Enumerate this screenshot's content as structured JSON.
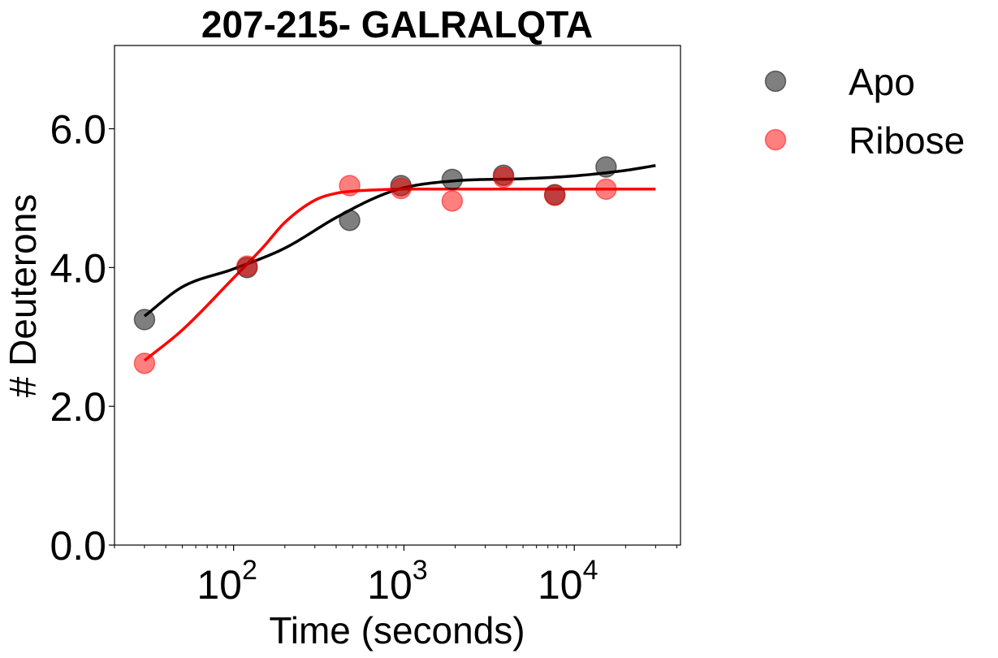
{
  "chart_data": {
    "type": "scatter",
    "title": "207-215- GALRALQTA",
    "xlabel": "Time (seconds)",
    "ylabel": "# Deuterons",
    "x_scale": "log",
    "xlim": [
      20,
      42000
    ],
    "ylim": [
      0,
      7.2
    ],
    "x_ticks": [
      {
        "value": 100,
        "base": "10",
        "exp": "2"
      },
      {
        "value": 1000,
        "base": "10",
        "exp": "3"
      },
      {
        "value": 10000,
        "base": "10",
        "exp": "4"
      }
    ],
    "y_ticks": [
      {
        "value": 0,
        "label": "0.0"
      },
      {
        "value": 2,
        "label": "2.0"
      },
      {
        "value": 4,
        "label": "4.0"
      },
      {
        "value": 6,
        "label": "6.0"
      }
    ],
    "legend_position": "outside-right-top",
    "grid": false,
    "series": [
      {
        "name": "Apo",
        "color": "#000000",
        "marker_alpha": 0.5,
        "x": [
          30,
          120,
          480,
          960,
          1920,
          3840,
          7680,
          15360
        ],
        "y": [
          3.25,
          4.0,
          4.68,
          5.18,
          5.27,
          5.33,
          5.05,
          5.45
        ],
        "fit": {
          "x": [
            30,
            50,
            100,
            200,
            400,
            700,
            1000,
            2000,
            5000,
            10000,
            20000,
            30000
          ],
          "y": [
            3.3,
            3.72,
            3.98,
            4.28,
            4.72,
            5.02,
            5.15,
            5.25,
            5.28,
            5.32,
            5.4,
            5.47
          ]
        }
      },
      {
        "name": "Ribose",
        "color": "#ff0000",
        "marker_alpha": 0.5,
        "x": [
          30,
          120,
          480,
          960,
          1920,
          3840,
          7680,
          15360
        ],
        "y": [
          2.62,
          4.02,
          5.18,
          5.14,
          4.96,
          5.3,
          5.04,
          5.13
        ],
        "fit": {
          "x": [
            30,
            50,
            100,
            150,
            200,
            300,
            400,
            500,
            700,
            1000,
            2000,
            5000,
            30000
          ],
          "y": [
            2.66,
            3.1,
            3.85,
            4.3,
            4.65,
            4.97,
            5.07,
            5.1,
            5.12,
            5.13,
            5.13,
            5.13,
            5.13
          ]
        }
      }
    ]
  }
}
